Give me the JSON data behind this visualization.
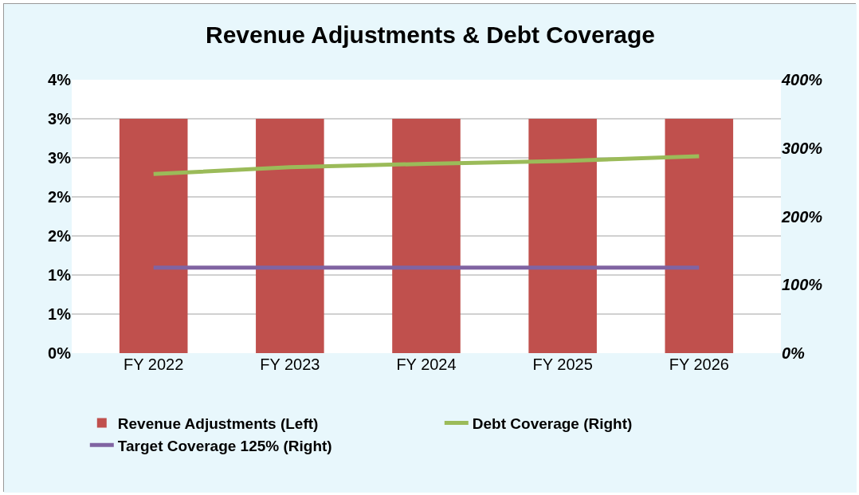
{
  "chart_data": {
    "type": "bar",
    "title": "Revenue Adjustments & Debt Coverage",
    "categories": [
      "FY 2022",
      "FY 2023",
      "FY 2024",
      "FY 2025",
      "FY 2026"
    ],
    "series": [
      {
        "name": "Revenue Adjustments (Left)",
        "color": "#c0504d",
        "values": [
          3,
          3,
          3,
          3,
          3
        ]
      },
      {
        "type": "line",
        "name": "Debt Coverage (Right)",
        "color": "#9bbb59",
        "axis": "y2",
        "values": [
          262,
          272,
          277,
          281,
          288
        ]
      },
      {
        "type": "line",
        "name": "Target Coverage 125% (Right)",
        "color": "#8064a2",
        "axis": "y2",
        "values": [
          125,
          125,
          125,
          125,
          125
        ]
      }
    ],
    "ylim": [
      0,
      3.5
    ],
    "yticks": [
      {
        "value": 0,
        "label": "0%"
      },
      {
        "value": 0.5,
        "label": "1%"
      },
      {
        "value": 1,
        "label": "1%"
      },
      {
        "value": 1.5,
        "label": "2%"
      },
      {
        "value": 2,
        "label": "2%"
      },
      {
        "value": 2.5,
        "label": "3%"
      },
      {
        "value": 3,
        "label": "3%"
      },
      {
        "value": 3.5,
        "label": "4%"
      }
    ],
    "y2lim": [
      0,
      400
    ],
    "y2ticks": [
      {
        "value": 0,
        "label": "0%"
      },
      {
        "value": 100,
        "label": "100%"
      },
      {
        "value": 200,
        "label": "200%"
      },
      {
        "value": 300,
        "label": "300%"
      },
      {
        "value": 400,
        "label": "400%"
      }
    ],
    "grid": "y",
    "legend": "bottom"
  }
}
